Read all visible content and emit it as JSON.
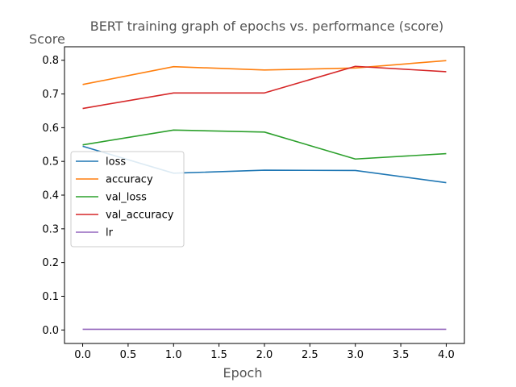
{
  "chart_data": {
    "type": "line",
    "title": "BERT training graph of epochs vs. performance (score)",
    "xlabel": "Epoch",
    "ylabel": "Score",
    "x": [
      0,
      1,
      2,
      3,
      4
    ],
    "xlim": [
      -0.2,
      4.2
    ],
    "ylim": [
      -0.04,
      0.84
    ],
    "xticks": [
      "0.0",
      "0.5",
      "1.0",
      "1.5",
      "2.0",
      "2.5",
      "3.0",
      "3.5",
      "4.0"
    ],
    "yticks": [
      "0.0",
      "0.1",
      "0.2",
      "0.3",
      "0.4",
      "0.5",
      "0.6",
      "0.7",
      "0.8"
    ],
    "grid": false,
    "legend_position": "center-left",
    "series": [
      {
        "name": "loss",
        "color": "#1f77b4",
        "values": [
          0.545,
          0.465,
          0.474,
          0.473,
          0.437
        ]
      },
      {
        "name": "accuracy",
        "color": "#ff7f0e",
        "values": [
          0.728,
          0.781,
          0.771,
          0.777,
          0.799
        ]
      },
      {
        "name": "val_loss",
        "color": "#2ca02c",
        "values": [
          0.549,
          0.593,
          0.587,
          0.507,
          0.523
        ]
      },
      {
        "name": "val_accuracy",
        "color": "#d62728",
        "values": [
          0.657,
          0.703,
          0.703,
          0.782,
          0.766
        ]
      },
      {
        "name": "lr",
        "color": "#9467bd",
        "values": [
          0.002,
          0.002,
          0.002,
          0.002,
          0.002
        ]
      }
    ]
  }
}
